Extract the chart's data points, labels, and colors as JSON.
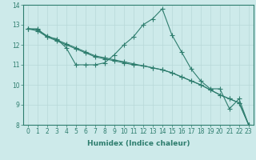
{
  "xlabel": "Humidex (Indice chaleur)",
  "background_color": "#cdeaea",
  "line_color": "#2e7d6e",
  "grid_color": "#b8d8d8",
  "xlim": [
    -0.5,
    23.5
  ],
  "ylim": [
    8,
    14
  ],
  "yticks": [
    8,
    9,
    10,
    11,
    12,
    13,
    14
  ],
  "xticks": [
    0,
    1,
    2,
    3,
    4,
    5,
    6,
    7,
    8,
    9,
    10,
    11,
    12,
    13,
    14,
    15,
    16,
    17,
    18,
    19,
    20,
    21,
    22,
    23
  ],
  "series": [
    {
      "x": [
        0,
        1,
        2,
        3,
        4,
        5,
        6,
        7,
        8,
        9,
        10,
        11,
        12,
        13,
        14,
        15,
        16,
        17,
        18,
        19,
        20,
        21,
        22,
        23
      ],
      "y": [
        12.8,
        12.8,
        12.4,
        12.3,
        11.85,
        11.0,
        11.0,
        11.0,
        11.1,
        11.5,
        12.0,
        12.4,
        13.0,
        13.3,
        13.8,
        12.5,
        11.65,
        10.8,
        10.2,
        9.8,
        9.8,
        8.8,
        9.3,
        8.0
      ]
    },
    {
      "x": [
        0,
        1,
        2,
        3,
        4,
        5,
        6,
        7,
        8,
        9,
        10,
        11,
        12,
        13,
        14,
        15,
        16,
        17,
        18,
        19,
        20,
        21,
        22,
        23
      ],
      "y": [
        12.8,
        12.75,
        12.45,
        12.25,
        12.05,
        11.85,
        11.65,
        11.45,
        11.35,
        11.25,
        11.15,
        11.05,
        10.95,
        10.85,
        10.75,
        10.6,
        10.4,
        10.2,
        10.0,
        9.75,
        9.5,
        9.3,
        9.1,
        8.0
      ]
    },
    {
      "x": [
        0,
        1,
        2,
        3,
        4,
        5,
        6,
        7,
        8,
        9,
        10,
        11,
        12,
        13,
        14,
        15,
        16,
        17,
        18,
        19,
        20,
        21,
        22,
        23
      ],
      "y": [
        12.8,
        12.7,
        12.4,
        12.2,
        12.0,
        11.8,
        11.6,
        11.4,
        11.3,
        11.2,
        11.1,
        11.0,
        10.95,
        10.85,
        10.75,
        10.6,
        10.4,
        10.2,
        10.0,
        9.75,
        9.5,
        9.3,
        9.1,
        8.0
      ]
    }
  ],
  "markersize": 2.0,
  "linewidth": 0.8,
  "xlabel_fontsize": 6.5,
  "tick_fontsize": 5.5
}
